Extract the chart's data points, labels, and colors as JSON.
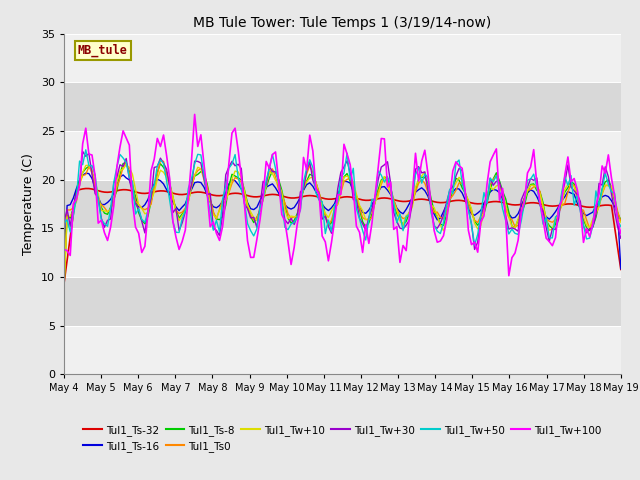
{
  "title": "MB Tule Tower: Tule Temps 1 (3/19/14-now)",
  "ylabel": "Temperature (C)",
  "ylim": [
    0,
    35
  ],
  "yticks": [
    0,
    5,
    10,
    15,
    20,
    25,
    30,
    35
  ],
  "fig_bg_color": "#e8e8e8",
  "plot_bg_color": "#d8d8d8",
  "legend_label": "MB_tule",
  "series": {
    "Tul1_Ts-32": {
      "color": "#dd0000",
      "lw": 1.2
    },
    "Tul1_Ts-16": {
      "color": "#0000dd",
      "lw": 1.0
    },
    "Tul1_Ts-8": {
      "color": "#00cc00",
      "lw": 1.0
    },
    "Tul1_Ts0": {
      "color": "#ff8800",
      "lw": 1.0
    },
    "Tul1_Tw+10": {
      "color": "#dddd00",
      "lw": 1.0
    },
    "Tul1_Tw+30": {
      "color": "#9900cc",
      "lw": 1.0
    },
    "Tul1_Tw+50": {
      "color": "#00cccc",
      "lw": 1.0
    },
    "Tul1_Tw+100": {
      "color": "#ff00ff",
      "lw": 1.2
    }
  },
  "xtick_labels": [
    "May 4",
    "May 5",
    "May 6",
    "May 7",
    "May 8",
    "May 9",
    "May 10",
    "May 11",
    "May 12",
    "May 13",
    "May 14",
    "May 15",
    "May 16",
    "May 17",
    "May 18",
    "May 19"
  ],
  "xtick_positions": [
    0,
    1,
    2,
    3,
    4,
    5,
    6,
    7,
    8,
    9,
    10,
    11,
    12,
    13,
    14,
    15
  ],
  "legend_ncol": 6,
  "legend_row2": [
    "Tul1_Tw+50",
    "Tul1_Tw+100"
  ]
}
